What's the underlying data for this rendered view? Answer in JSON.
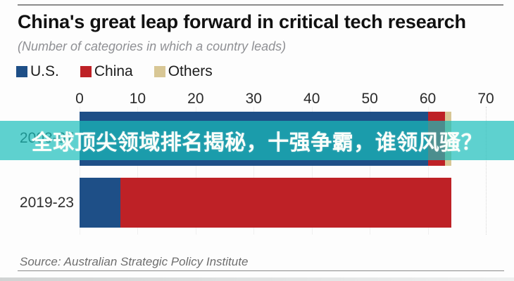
{
  "chart_data": {
    "type": "bar",
    "orientation": "horizontal",
    "stacked": true,
    "title": "China's great leap forward in critical tech research",
    "subtitle": "(Number of categories in which a country leads)",
    "categories": [
      "2003-07",
      "2019-23"
    ],
    "series": [
      {
        "name": "U.S.",
        "color": "#1e4f87",
        "values": [
          60,
          7
        ]
      },
      {
        "name": "China",
        "color": "#be2126",
        "values": [
          3,
          57
        ]
      },
      {
        "name": "Others",
        "color": "#d8c795",
        "values": [
          1,
          0
        ]
      }
    ],
    "xlim": [
      0,
      70
    ],
    "xticks": [
      0,
      10,
      20,
      30,
      40,
      50,
      60,
      70
    ],
    "legend_position": "top-left",
    "grid": "faint-vertical-lines",
    "xlabel": "",
    "ylabel": ""
  },
  "overlay_banner": {
    "text": "全球顶尖领域排名揭秘，十强争霸，谁领风骚？",
    "band_color": "rgba(25,190,186,0.7)",
    "text_color": "#fbfefa"
  },
  "source": {
    "label": "Source: Australian Strategic Policy Institute"
  }
}
